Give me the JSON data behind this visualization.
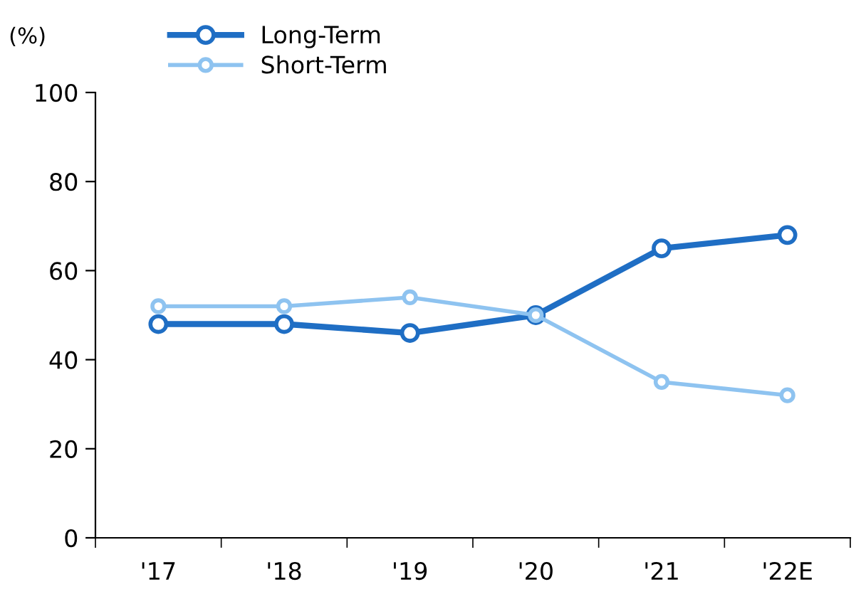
{
  "chart_data": {
    "type": "line",
    "ylabel": "(%)",
    "categories": [
      "'17",
      "'18",
      "'19",
      "'20",
      "'21",
      "'22E"
    ],
    "series": [
      {
        "name": "Long-Term",
        "color": "#1f6ec4",
        "values": [
          48,
          48,
          46,
          50,
          65,
          68
        ]
      },
      {
        "name": "Short-Term",
        "color": "#8ec3f0",
        "values": [
          52,
          52,
          54,
          50,
          35,
          32
        ]
      }
    ],
    "ylim": [
      0,
      100
    ],
    "yticks": [
      0,
      20,
      40,
      60,
      80,
      100
    ],
    "grid": false,
    "legend": "top left",
    "marker": "circle",
    "line_style": "solid"
  }
}
